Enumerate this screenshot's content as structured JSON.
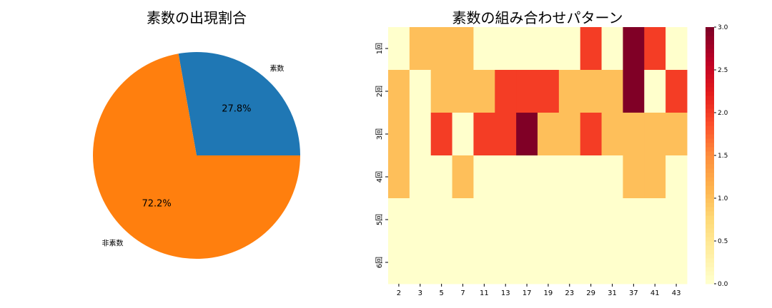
{
  "chart_data": [
    {
      "type": "pie",
      "title": "素数の出現割合",
      "labels": [
        "素数",
        "非素数"
      ],
      "values": [
        27.8,
        72.2
      ],
      "value_labels": [
        "27.8%",
        "72.2%"
      ],
      "colors": [
        "#1f77b4",
        "#ff7f0e"
      ],
      "start_angle_deg": 0,
      "direction": "counterclockwise"
    },
    {
      "type": "heatmap",
      "title": "素数の組み合わせパターン",
      "x_categories": [
        "2",
        "3",
        "5",
        "7",
        "11",
        "13",
        "17",
        "19",
        "23",
        "29",
        "31",
        "37",
        "41",
        "43"
      ],
      "y_categories": [
        "1回",
        "2回",
        "3回",
        "4回",
        "5回",
        "6回"
      ],
      "values": [
        [
          0,
          1,
          1,
          1,
          0,
          0,
          0,
          0,
          0,
          2,
          0,
          3,
          2,
          0
        ],
        [
          1,
          0,
          1,
          1,
          1,
          2,
          2,
          2,
          1,
          1,
          1,
          3,
          0,
          2
        ],
        [
          1,
          0,
          2,
          0,
          2,
          2,
          3,
          1,
          1,
          2,
          1,
          1,
          1,
          1
        ],
        [
          1,
          0,
          0,
          1,
          0,
          0,
          0,
          0,
          0,
          0,
          0,
          1,
          1,
          0
        ],
        [
          0,
          0,
          0,
          0,
          0,
          0,
          0,
          0,
          0,
          0,
          0,
          0,
          0,
          0
        ],
        [
          0,
          0,
          0,
          0,
          0,
          0,
          0,
          0,
          0,
          0,
          0,
          0,
          0,
          0
        ]
      ],
      "colormap": "YlOrRd",
      "colorbar": {
        "range": [
          0,
          3
        ],
        "ticks": [
          "0.0",
          "0.5",
          "1.0",
          "1.5",
          "2.0",
          "2.5",
          "3.0"
        ]
      }
    }
  ]
}
